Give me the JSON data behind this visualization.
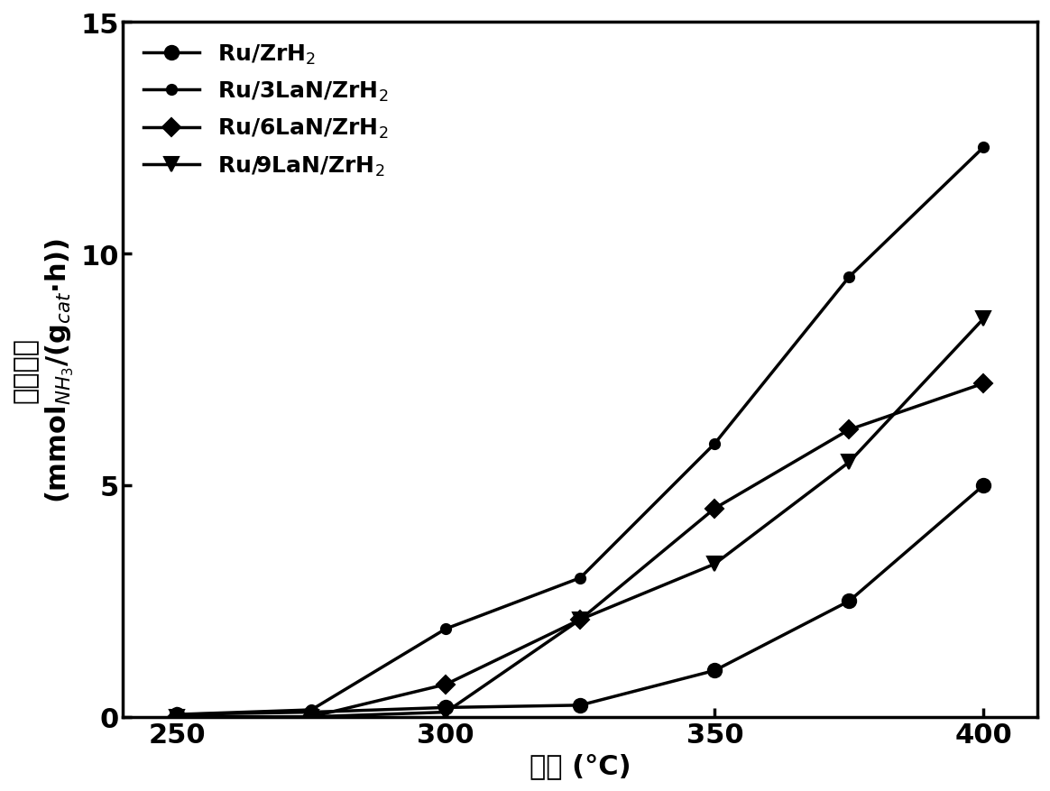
{
  "series": [
    {
      "label_parts": [
        "Ru/ZrH",
        "2"
      ],
      "label": "Ru/ZrH$_2$",
      "x": [
        250,
        275,
        300,
        325,
        350,
        375,
        400
      ],
      "y": [
        0.05,
        0.1,
        0.2,
        0.25,
        1.0,
        2.5,
        5.0
      ],
      "marker": "o",
      "markersize": 11,
      "linewidth": 2.5
    },
    {
      "label_parts": [
        "Ru/3LaN/ZrH",
        "2"
      ],
      "label": "Ru/3LaN/ZrH$_2$",
      "x": [
        250,
        275,
        300,
        325,
        350,
        375,
        400
      ],
      "y": [
        0.05,
        0.15,
        1.9,
        3.0,
        5.9,
        9.5,
        12.3
      ],
      "marker": "o",
      "markersize": 8,
      "linewidth": 2.5
    },
    {
      "label_parts": [
        "Ru/6LaN/ZrH",
        "2"
      ],
      "label": "Ru/6LaN/ZrH$_2$",
      "x": [
        250,
        275,
        300,
        325,
        350,
        375,
        400
      ],
      "y": [
        0.0,
        0.0,
        0.7,
        2.1,
        4.5,
        6.2,
        7.2
      ],
      "marker": "D",
      "markersize": 10,
      "linewidth": 2.5
    },
    {
      "label_parts": [
        "Ru/9LaN/ZrH",
        "2"
      ],
      "label": "Ru/9LaN/ZrH$_2$",
      "x": [
        250,
        275,
        300,
        325,
        350,
        375,
        400
      ],
      "y": [
        0.0,
        0.0,
        0.1,
        2.1,
        3.3,
        5.5,
        8.6
      ],
      "marker": "v",
      "markersize": 10,
      "linewidth": 2.5
    }
  ],
  "xlabel_cn": "温度",
  "xlabel_unit": " (°C)",
  "ylabel_cn": "反应速率",
  "ylabel_unit": "(mmol$_{NH_3}$/(g$_{cat}$·h))",
  "xlim": [
    240,
    410
  ],
  "ylim": [
    0,
    15
  ],
  "xticks": [
    250,
    300,
    350,
    400
  ],
  "yticks": [
    0,
    5,
    10,
    15
  ],
  "color": "#000000",
  "legend_loc": "upper left",
  "legend_fontsize": 18,
  "axis_fontsize": 22,
  "tick_fontsize": 22,
  "figsize": [
    11.64,
    8.78
  ],
  "dpi": 100
}
